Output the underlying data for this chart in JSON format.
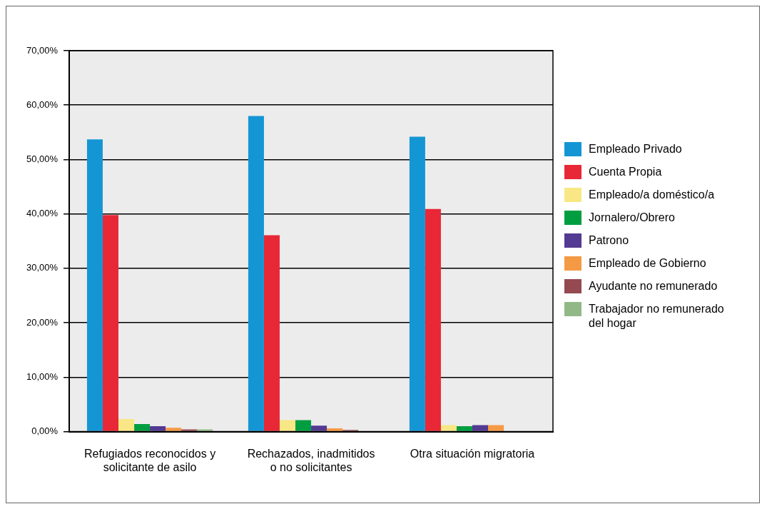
{
  "chart_data": {
    "type": "bar",
    "categories": [
      "Refugiados reconocidos y solicitante de asilo",
      "Rechazados, inadmitidos o no solicitantes",
      "Otra situación migratoria"
    ],
    "series": [
      {
        "name": "Empleado Privado",
        "color": "#1596d4",
        "values": [
          53.7,
          58.0,
          54.2
        ]
      },
      {
        "name": "Cuenta Propia",
        "color": "#e82836",
        "values": [
          39.8,
          36.1,
          40.9
        ]
      },
      {
        "name": "Empleado/a doméstico/a",
        "color": "#f8e784",
        "values": [
          2.3,
          2.1,
          1.2
        ]
      },
      {
        "name": "Jornalero/Obrero",
        "color": "#009e40",
        "values": [
          1.4,
          2.1,
          1.0
        ]
      },
      {
        "name": "Patrono",
        "color": "#533a92",
        "values": [
          1.0,
          1.1,
          1.2
        ]
      },
      {
        "name": "Empleado de Gobierno",
        "color": "#f59a44",
        "values": [
          0.7,
          0.6,
          1.2
        ]
      },
      {
        "name": "Ayudante no remunerado",
        "color": "#944a50",
        "values": [
          0.4,
          0.3,
          0
        ]
      },
      {
        "name": "Trabajador no remunerado del hogar",
        "color": "#92b887",
        "values": [
          0.4,
          0,
          0
        ]
      }
    ],
    "ylim": [
      0,
      70
    ],
    "yticks": [
      {
        "value": 0,
        "label": "0,00%"
      },
      {
        "value": 10,
        "label": "10,00%"
      },
      {
        "value": 20,
        "label": "20,00%"
      },
      {
        "value": 30,
        "label": "30,00%"
      },
      {
        "value": 40,
        "label": "40,00%"
      },
      {
        "value": 50,
        "label": "50,00%"
      },
      {
        "value": 60,
        "label": "60,00%"
      },
      {
        "value": 70,
        "label": "70,00%"
      }
    ],
    "grid": "y",
    "legend": "right"
  }
}
